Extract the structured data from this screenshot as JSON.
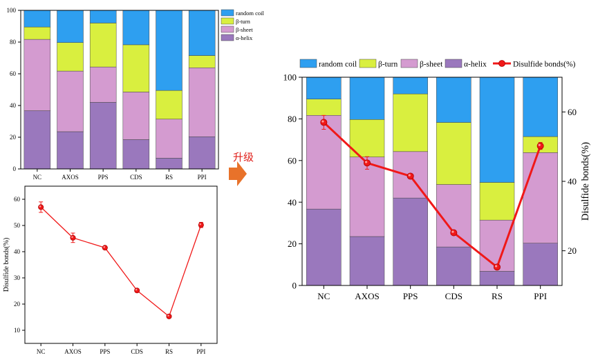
{
  "annotation": {
    "upgrade_label": "升级"
  },
  "colors": {
    "random_coil": "#2e9ff0",
    "beta_turn": "#d9ef3f",
    "beta_sheet": "#d49bd0",
    "alpha_helix": "#9a78bd",
    "disulfide_red": "#f01818",
    "disulfide_top": "#dd1111",
    "arrow": "#e8722a",
    "upgrade_text": "#e0201b"
  },
  "chart_data": [
    {
      "id": "stack_small",
      "type": "bar",
      "stacked": true,
      "categories": [
        "NC",
        "AXOS",
        "PPS",
        "CDS",
        "RS",
        "PPI"
      ],
      "series": [
        {
          "name": "α-helix",
          "key": "alpha_helix",
          "values": [
            36.7,
            23.5,
            42.0,
            18.5,
            6.8,
            20.3
          ]
        },
        {
          "name": "β-sheet",
          "key": "beta_sheet",
          "values": [
            45.0,
            38.2,
            22.3,
            30.0,
            24.6,
            43.5
          ]
        },
        {
          "name": "β-turn",
          "key": "beta_turn",
          "values": [
            7.8,
            18.0,
            27.7,
            29.8,
            18.1,
            7.7
          ]
        },
        {
          "name": "random coil",
          "key": "random_coil",
          "values": [
            10.5,
            20.3,
            8.0,
            21.7,
            50.5,
            28.5
          ]
        }
      ],
      "ylim": [
        0,
        100
      ],
      "yticks": [
        0,
        20,
        40,
        60,
        80,
        100
      ],
      "legend_position": "right",
      "legend_order": [
        "random coil",
        "β-turn",
        "β-sheet",
        "α-helix"
      ]
    },
    {
      "id": "line_small",
      "type": "line",
      "categories": [
        "NC",
        "AXOS",
        "PPS",
        "CDS",
        "RS",
        "PPI"
      ],
      "series": [
        {
          "name": "Disulfide bonds(%)",
          "values": [
            57.0,
            45.3,
            41.5,
            25.2,
            15.3,
            50.2
          ],
          "errors": [
            2.0,
            1.8,
            0.6,
            0.6,
            0.4,
            1.0
          ]
        }
      ],
      "ylabel": "Disulfide bonds(%)",
      "ylim": [
        5,
        65
      ],
      "yticks": [
        10,
        20,
        30,
        40,
        50,
        60
      ]
    },
    {
      "id": "combo_upgraded",
      "type": "bar",
      "stacked": true,
      "categories": [
        "NC",
        "AXOS",
        "PPS",
        "CDS",
        "RS",
        "PPI"
      ],
      "series": [
        {
          "name": "α-helix",
          "key": "alpha_helix",
          "values": [
            36.7,
            23.5,
            42.0,
            18.5,
            6.8,
            20.3
          ]
        },
        {
          "name": "β-sheet",
          "key": "beta_sheet",
          "values": [
            45.0,
            38.2,
            22.3,
            30.0,
            24.6,
            43.5
          ]
        },
        {
          "name": "β-turn",
          "key": "beta_turn",
          "values": [
            7.8,
            18.0,
            27.7,
            29.8,
            18.1,
            7.7
          ]
        },
        {
          "name": "random coil",
          "key": "random_coil",
          "values": [
            10.5,
            20.3,
            8.0,
            21.7,
            50.5,
            28.5
          ]
        }
      ],
      "line_series": {
        "name": "Disulfide bonds(%)",
        "values": [
          57.0,
          45.3,
          41.5,
          25.2,
          15.3,
          50.2
        ],
        "errors": [
          2.0,
          1.8,
          0.6,
          0.6,
          0.4,
          1.0
        ],
        "axis": "right"
      },
      "ylim": [
        0,
        100
      ],
      "yticks": [
        0,
        20,
        40,
        60,
        80,
        100
      ],
      "y2label": "Disulfide bonds(%)",
      "y2lim": [
        10,
        70
      ],
      "y2ticks": [
        20,
        40,
        60
      ],
      "legend_position": "top",
      "legend_order": [
        "random coil",
        "β-turn",
        "β-sheet",
        "α-helix",
        "Disulfide bonds(%)"
      ]
    }
  ]
}
